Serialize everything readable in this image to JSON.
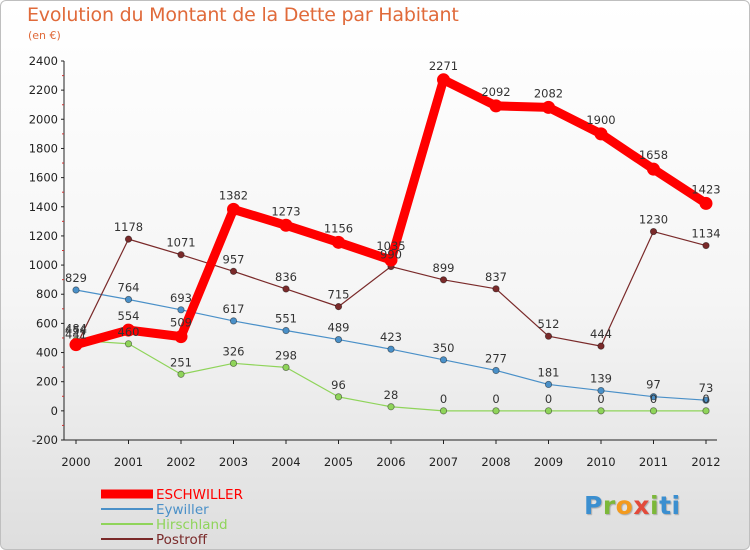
{
  "header": {
    "title": "Evolution du Montant de la Dette par Habitant",
    "subtitle": "(en €)"
  },
  "logo": {
    "text": "Proxiti",
    "letters": [
      "P",
      "r",
      "o",
      "x",
      "i",
      "ti"
    ]
  },
  "chart_data": {
    "type": "line",
    "x": [
      "2000",
      "2001",
      "2002",
      "2003",
      "2004",
      "2005",
      "2006",
      "2007",
      "2008",
      "2009",
      "2010",
      "2011",
      "2012"
    ],
    "ylim": [
      -200,
      2400
    ],
    "yticks": [
      -200,
      0,
      200,
      400,
      600,
      800,
      1000,
      1200,
      1400,
      1600,
      1800,
      2000,
      2200,
      2400
    ],
    "grid": false,
    "legend_position": "bottom-left",
    "series": [
      {
        "name": "ESCHWILLER",
        "color": "#ff0000",
        "emphasis": true,
        "values": [
          454,
          554,
          509,
          1382,
          1273,
          1156,
          1035,
          2271,
          2092,
          2082,
          1900,
          1658,
          1423
        ]
      },
      {
        "name": "Eywiller",
        "color": "#4a90c8",
        "values": [
          829,
          764,
          693,
          617,
          551,
          489,
          423,
          350,
          277,
          181,
          139,
          97,
          73
        ]
      },
      {
        "name": "Hirschland",
        "color": "#8fd45a",
        "values": [
          484,
          460,
          251,
          326,
          298,
          96,
          28,
          0,
          0,
          0,
          0,
          0,
          0
        ]
      },
      {
        "name": "Postroff",
        "color": "#7a2a2a",
        "values": [
          441,
          1178,
          1071,
          957,
          836,
          715,
          990,
          899,
          837,
          512,
          444,
          1230,
          1134
        ]
      }
    ]
  }
}
